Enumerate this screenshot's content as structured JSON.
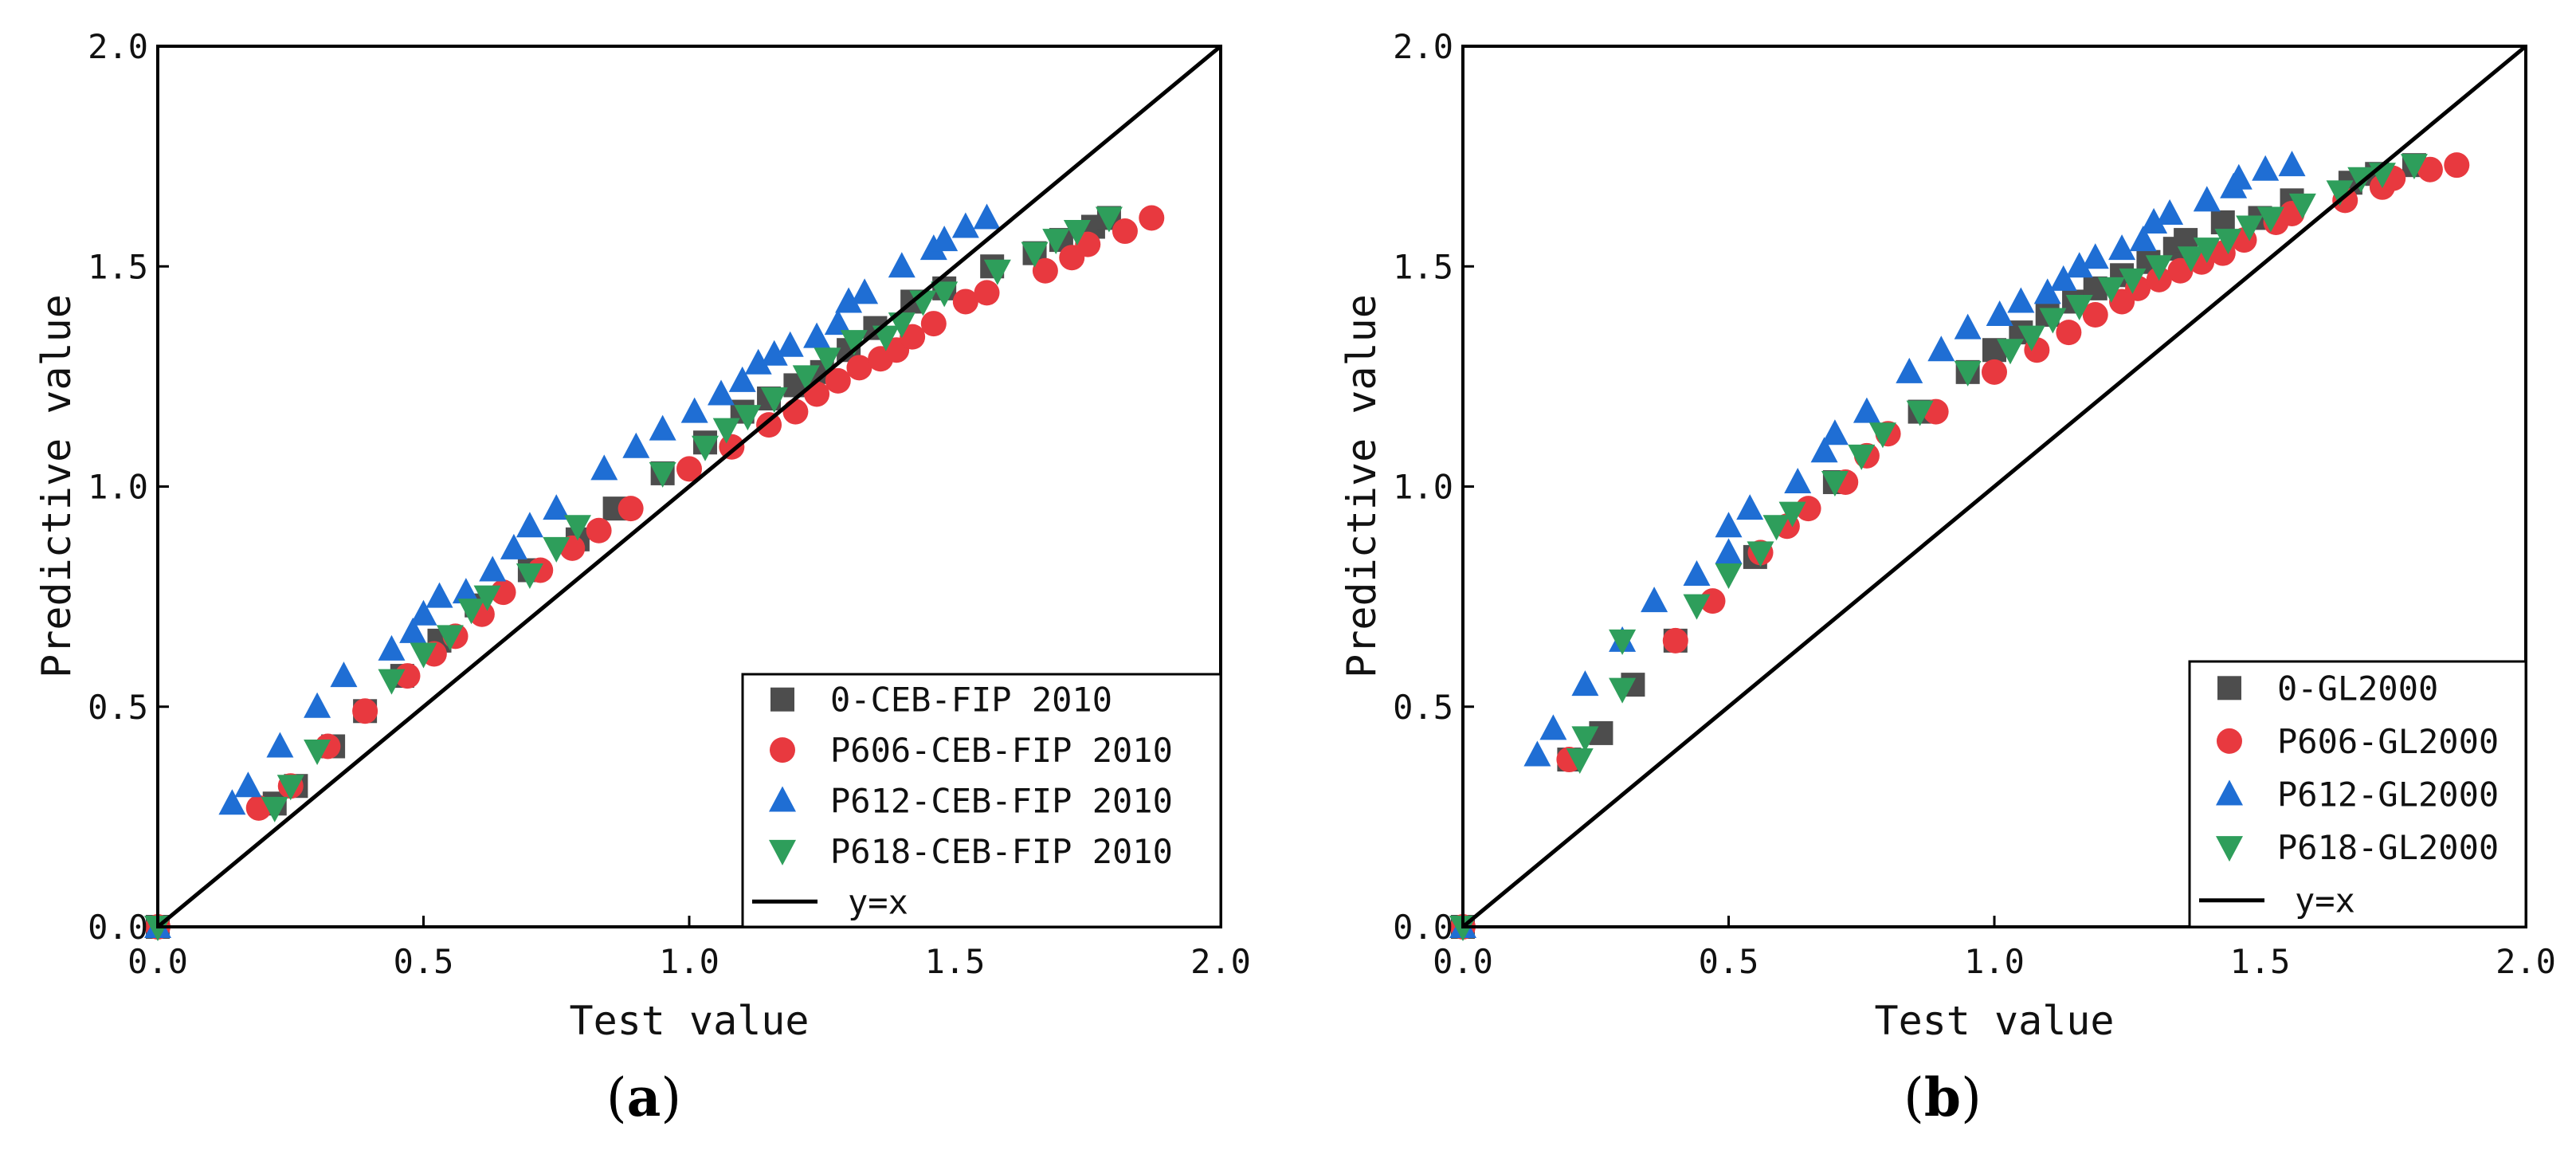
{
  "chart_data": [
    {
      "type": "scatter",
      "panel_label": "a",
      "xlabel": "Test value",
      "ylabel": "Predictive value",
      "xlim": [
        0,
        2
      ],
      "ylim": [
        0,
        2
      ],
      "xticks": [
        "0.0",
        "0.5",
        "1.0",
        "1.5",
        "2.0"
      ],
      "yticks": [
        "0.0",
        "0.5",
        "1.0",
        "1.5",
        "2.0"
      ],
      "legend_position": "bottom-right",
      "reference_line": {
        "name": "y=x",
        "color": "#000000"
      },
      "series": [
        {
          "name": "0-CEB-FIP 2010",
          "marker": "square",
          "color": "#4d4d4d",
          "points": [
            [
              0,
              0
            ],
            [
              0.22,
              0.28
            ],
            [
              0.26,
              0.32
            ],
            [
              0.33,
              0.41
            ],
            [
              0.39,
              0.49
            ],
            [
              0.46,
              0.57
            ],
            [
              0.53,
              0.65
            ],
            [
              0.6,
              0.73
            ],
            [
              0.7,
              0.81
            ],
            [
              0.79,
              0.88
            ],
            [
              0.86,
              0.95
            ],
            [
              0.95,
              1.03
            ],
            [
              1.03,
              1.1
            ],
            [
              1.1,
              1.17
            ],
            [
              1.15,
              1.2
            ],
            [
              1.2,
              1.23
            ],
            [
              1.25,
              1.26
            ],
            [
              1.3,
              1.31
            ],
            [
              1.35,
              1.36
            ],
            [
              1.42,
              1.42
            ],
            [
              1.48,
              1.45
            ],
            [
              1.57,
              1.5
            ],
            [
              1.65,
              1.53
            ],
            [
              1.7,
              1.56
            ],
            [
              1.76,
              1.59
            ],
            [
              1.79,
              1.61
            ]
          ]
        },
        {
          "name": "P606-CEB-FIP 2010",
          "marker": "circle",
          "color": "#e8393f",
          "points": [
            [
              0,
              0
            ],
            [
              0.19,
              0.27
            ],
            [
              0.25,
              0.32
            ],
            [
              0.32,
              0.41
            ],
            [
              0.39,
              0.49
            ],
            [
              0.47,
              0.57
            ],
            [
              0.52,
              0.62
            ],
            [
              0.56,
              0.66
            ],
            [
              0.61,
              0.71
            ],
            [
              0.65,
              0.76
            ],
            [
              0.72,
              0.81
            ],
            [
              0.78,
              0.86
            ],
            [
              0.83,
              0.9
            ],
            [
              0.89,
              0.95
            ],
            [
              1.0,
              1.04
            ],
            [
              1.08,
              1.09
            ],
            [
              1.15,
              1.14
            ],
            [
              1.2,
              1.17
            ],
            [
              1.24,
              1.21
            ],
            [
              1.28,
              1.24
            ],
            [
              1.32,
              1.27
            ],
            [
              1.36,
              1.29
            ],
            [
              1.39,
              1.31
            ],
            [
              1.42,
              1.34
            ],
            [
              1.46,
              1.37
            ],
            [
              1.52,
              1.42
            ],
            [
              1.56,
              1.44
            ],
            [
              1.67,
              1.49
            ],
            [
              1.72,
              1.52
            ],
            [
              1.75,
              1.55
            ],
            [
              1.82,
              1.58
            ],
            [
              1.87,
              1.61
            ]
          ]
        },
        {
          "name": "P612-CEB-FIP 2010",
          "marker": "triangle-up",
          "color": "#1f6ed4",
          "points": [
            [
              0,
              0
            ],
            [
              0.14,
              0.28
            ],
            [
              0.17,
              0.32
            ],
            [
              0.23,
              0.41
            ],
            [
              0.3,
              0.5
            ],
            [
              0.35,
              0.57
            ],
            [
              0.44,
              0.63
            ],
            [
              0.48,
              0.67
            ],
            [
              0.5,
              0.71
            ],
            [
              0.53,
              0.75
            ],
            [
              0.58,
              0.76
            ],
            [
              0.63,
              0.81
            ],
            [
              0.67,
              0.86
            ],
            [
              0.7,
              0.91
            ],
            [
              0.75,
              0.95
            ],
            [
              0.84,
              1.04
            ],
            [
              0.9,
              1.09
            ],
            [
              0.95,
              1.13
            ],
            [
              1.01,
              1.17
            ],
            [
              1.06,
              1.21
            ],
            [
              1.1,
              1.24
            ],
            [
              1.13,
              1.28
            ],
            [
              1.16,
              1.3
            ],
            [
              1.19,
              1.32
            ],
            [
              1.24,
              1.34
            ],
            [
              1.28,
              1.37
            ],
            [
              1.3,
              1.42
            ],
            [
              1.33,
              1.44
            ],
            [
              1.4,
              1.5
            ],
            [
              1.46,
              1.54
            ],
            [
              1.48,
              1.56
            ],
            [
              1.52,
              1.59
            ],
            [
              1.56,
              1.61
            ]
          ]
        },
        {
          "name": "P618-CEB-FIP 2010",
          "marker": "triangle-down",
          "color": "#2e9e5b",
          "points": [
            [
              0,
              0
            ],
            [
              0.22,
              0.27
            ],
            [
              0.25,
              0.32
            ],
            [
              0.3,
              0.4
            ],
            [
              0.44,
              0.56
            ],
            [
              0.5,
              0.62
            ],
            [
              0.55,
              0.66
            ],
            [
              0.59,
              0.72
            ],
            [
              0.62,
              0.75
            ],
            [
              0.7,
              0.8
            ],
            [
              0.75,
              0.86
            ],
            [
              0.79,
              0.91
            ],
            [
              0.95,
              1.03
            ],
            [
              1.03,
              1.09
            ],
            [
              1.07,
              1.13
            ],
            [
              1.11,
              1.16
            ],
            [
              1.16,
              1.2
            ],
            [
              1.22,
              1.25
            ],
            [
              1.26,
              1.29
            ],
            [
              1.31,
              1.33
            ],
            [
              1.37,
              1.34
            ],
            [
              1.4,
              1.37
            ],
            [
              1.44,
              1.42
            ],
            [
              1.48,
              1.44
            ],
            [
              1.58,
              1.49
            ],
            [
              1.65,
              1.53
            ],
            [
              1.69,
              1.56
            ],
            [
              1.73,
              1.58
            ],
            [
              1.79,
              1.61
            ]
          ]
        }
      ]
    },
    {
      "type": "scatter",
      "panel_label": "b",
      "xlabel": "Test value",
      "ylabel": "Predictive value",
      "xlim": [
        0,
        2
      ],
      "ylim": [
        0,
        2
      ],
      "xticks": [
        "0.0",
        "0.5",
        "1.0",
        "1.5",
        "2.0"
      ],
      "yticks": [
        "0.0",
        "0.5",
        "1.0",
        "1.5",
        "2.0"
      ],
      "legend_position": "bottom-right",
      "reference_line": {
        "name": "y=x",
        "color": "#000000"
      },
      "series": [
        {
          "name": "0-GL2000",
          "marker": "square",
          "color": "#4d4d4d",
          "points": [
            [
              0,
              0
            ],
            [
              0.2,
              0.38
            ],
            [
              0.26,
              0.44
            ],
            [
              0.32,
              0.55
            ],
            [
              0.4,
              0.65
            ],
            [
              0.55,
              0.84
            ],
            [
              0.7,
              1.01
            ],
            [
              0.86,
              1.17
            ],
            [
              0.95,
              1.26
            ],
            [
              1.0,
              1.31
            ],
            [
              1.05,
              1.35
            ],
            [
              1.1,
              1.39
            ],
            [
              1.15,
              1.42
            ],
            [
              1.19,
              1.45
            ],
            [
              1.24,
              1.48
            ],
            [
              1.29,
              1.51
            ],
            [
              1.34,
              1.54
            ],
            [
              1.36,
              1.56
            ],
            [
              1.43,
              1.6
            ],
            [
              1.5,
              1.61
            ],
            [
              1.56,
              1.65
            ],
            [
              1.67,
              1.69
            ],
            [
              1.72,
              1.71
            ],
            [
              1.79,
              1.73
            ]
          ]
        },
        {
          "name": "P606-GL2000",
          "marker": "circle",
          "color": "#e8393f",
          "points": [
            [
              0,
              0
            ],
            [
              0.2,
              0.38
            ],
            [
              0.4,
              0.65
            ],
            [
              0.47,
              0.74
            ],
            [
              0.56,
              0.85
            ],
            [
              0.61,
              0.91
            ],
            [
              0.65,
              0.95
            ],
            [
              0.72,
              1.01
            ],
            [
              0.76,
              1.07
            ],
            [
              0.8,
              1.12
            ],
            [
              0.89,
              1.17
            ],
            [
              1.0,
              1.26
            ],
            [
              1.08,
              1.31
            ],
            [
              1.14,
              1.35
            ],
            [
              1.19,
              1.39
            ],
            [
              1.24,
              1.42
            ],
            [
              1.27,
              1.45
            ],
            [
              1.31,
              1.47
            ],
            [
              1.35,
              1.49
            ],
            [
              1.39,
              1.51
            ],
            [
              1.43,
              1.53
            ],
            [
              1.47,
              1.56
            ],
            [
              1.53,
              1.6
            ],
            [
              1.56,
              1.62
            ],
            [
              1.66,
              1.65
            ],
            [
              1.73,
              1.68
            ],
            [
              1.75,
              1.7
            ],
            [
              1.82,
              1.72
            ],
            [
              1.87,
              1.73
            ]
          ]
        },
        {
          "name": "P612-GL2000",
          "marker": "triangle-up",
          "color": "#1f6ed4",
          "points": [
            [
              0,
              0
            ],
            [
              0.14,
              0.39
            ],
            [
              0.17,
              0.45
            ],
            [
              0.23,
              0.55
            ],
            [
              0.3,
              0.65
            ],
            [
              0.36,
              0.74
            ],
            [
              0.44,
              0.8
            ],
            [
              0.5,
              0.85
            ],
            [
              0.5,
              0.91
            ],
            [
              0.54,
              0.95
            ],
            [
              0.63,
              1.01
            ],
            [
              0.68,
              1.08
            ],
            [
              0.7,
              1.12
            ],
            [
              0.76,
              1.17
            ],
            [
              0.84,
              1.26
            ],
            [
              0.9,
              1.31
            ],
            [
              0.95,
              1.36
            ],
            [
              1.01,
              1.39
            ],
            [
              1.05,
              1.42
            ],
            [
              1.1,
              1.44
            ],
            [
              1.13,
              1.47
            ],
            [
              1.16,
              1.5
            ],
            [
              1.19,
              1.52
            ],
            [
              1.24,
              1.54
            ],
            [
              1.28,
              1.56
            ],
            [
              1.3,
              1.6
            ],
            [
              1.33,
              1.62
            ],
            [
              1.4,
              1.65
            ],
            [
              1.45,
              1.68
            ],
            [
              1.46,
              1.7
            ],
            [
              1.51,
              1.72
            ],
            [
              1.56,
              1.73
            ]
          ]
        },
        {
          "name": "P618-GL2000",
          "marker": "triangle-down",
          "color": "#2e9e5b",
          "points": [
            [
              0,
              0
            ],
            [
              0.22,
              0.38
            ],
            [
              0.23,
              0.43
            ],
            [
              0.3,
              0.54
            ],
            [
              0.3,
              0.65
            ],
            [
              0.44,
              0.73
            ],
            [
              0.5,
              0.8
            ],
            [
              0.56,
              0.85
            ],
            [
              0.59,
              0.91
            ],
            [
              0.62,
              0.94
            ],
            [
              0.7,
              1.01
            ],
            [
              0.75,
              1.07
            ],
            [
              0.79,
              1.12
            ],
            [
              0.86,
              1.17
            ],
            [
              0.95,
              1.26
            ],
            [
              1.03,
              1.31
            ],
            [
              1.07,
              1.34
            ],
            [
              1.11,
              1.38
            ],
            [
              1.16,
              1.41
            ],
            [
              1.22,
              1.45
            ],
            [
              1.26,
              1.47
            ],
            [
              1.31,
              1.5
            ],
            [
              1.37,
              1.52
            ],
            [
              1.4,
              1.54
            ],
            [
              1.44,
              1.56
            ],
            [
              1.48,
              1.59
            ],
            [
              1.52,
              1.61
            ],
            [
              1.58,
              1.64
            ],
            [
              1.65,
              1.67
            ],
            [
              1.69,
              1.7
            ],
            [
              1.73,
              1.71
            ],
            [
              1.79,
              1.73
            ]
          ]
        }
      ]
    }
  ]
}
